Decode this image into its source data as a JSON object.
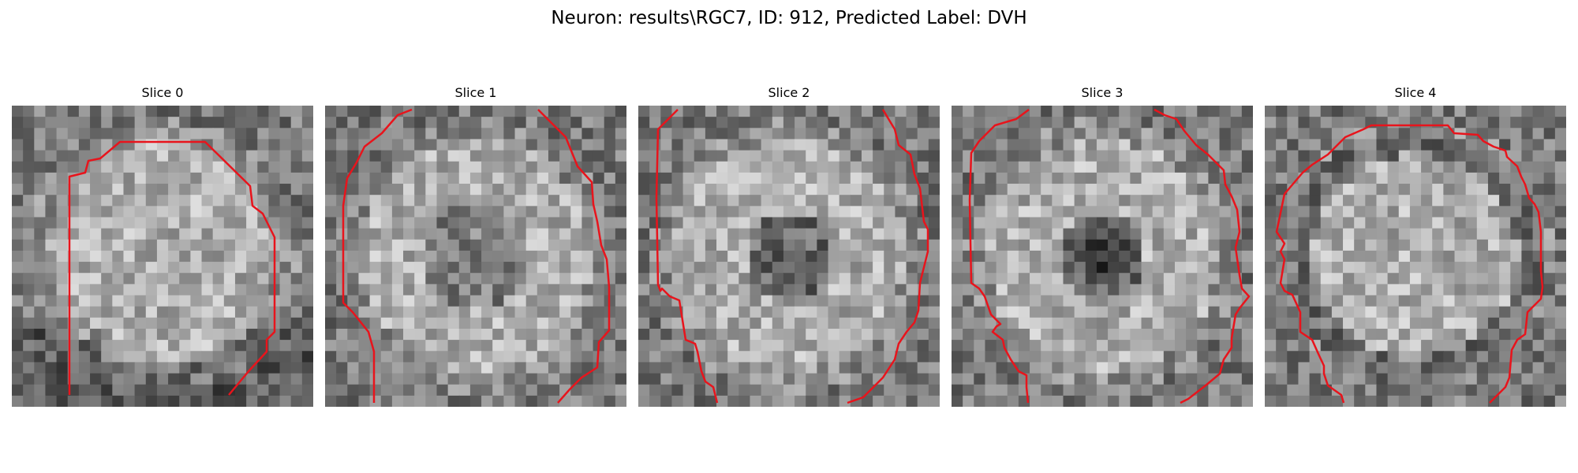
{
  "figure": {
    "title": "Neuron: results\\RGC7, ID: 912, Predicted Label: DVH"
  },
  "colors": {
    "contour": "#e8141c",
    "colormap": "gray"
  },
  "slices": [
    {
      "title": "Slice 0"
    },
    {
      "title": "Slice 1"
    },
    {
      "title": "Slice 2"
    },
    {
      "title": "Slice 3"
    },
    {
      "title": "Slice 4"
    }
  ]
}
